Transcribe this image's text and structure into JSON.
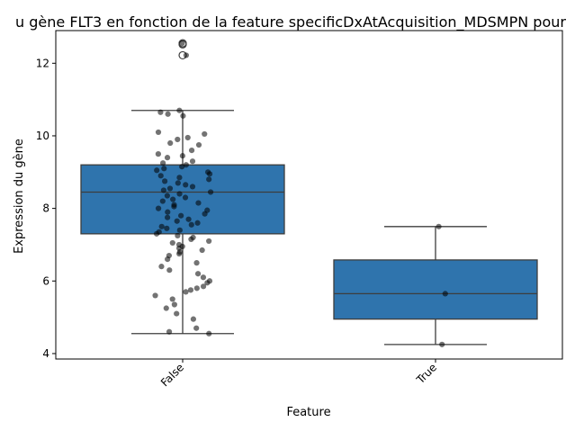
{
  "chart_data": {
    "type": "box",
    "title": "u gène FLT3 en fonction de la feature specificDxAtAcquisition_MDSMPN pour",
    "xlabel": "Feature",
    "ylabel": "Expression du gène",
    "categories": [
      "False",
      "True"
    ],
    "ylim": [
      3.85,
      12.9
    ],
    "yticks": [
      4,
      6,
      8,
      10,
      12
    ],
    "box_color": "#2f74ad",
    "point_color": "#000000",
    "grid": false,
    "boxes": [
      {
        "category": "False",
        "whisker_low": 4.55,
        "q1": 7.3,
        "median": 8.45,
        "q3": 9.2,
        "whisker_high": 10.7,
        "outliers": [
          12.55,
          12.52,
          12.22
        ]
      },
      {
        "category": "True",
        "whisker_low": 4.25,
        "q1": 4.95,
        "median": 5.65,
        "q3": 6.58,
        "whisker_high": 7.5,
        "outliers": []
      }
    ],
    "points": [
      {
        "category": "True",
        "values": [
          7.5,
          5.65,
          4.25
        ],
        "offsets": [
          0.02,
          0.06,
          0.04
        ]
      },
      {
        "category": "False",
        "values": [
          12.55,
          12.22,
          10.65,
          10.6,
          10.7,
          10.55,
          10.1,
          10.05,
          9.95,
          9.9,
          9.8,
          9.75,
          9.6,
          9.5,
          9.45,
          9.4,
          9.3,
          9.25,
          9.2,
          9.15,
          9.1,
          9.05,
          9.0,
          8.95,
          8.9,
          8.85,
          8.8,
          8.75,
          8.7,
          8.65,
          8.6,
          8.55,
          8.5,
          8.45,
          8.4,
          8.35,
          8.3,
          8.25,
          8.2,
          8.15,
          8.1,
          8.05,
          8.0,
          7.95,
          7.9,
          7.85,
          7.8,
          7.75,
          7.7,
          7.65,
          7.6,
          7.55,
          7.5,
          7.45,
          7.4,
          7.35,
          7.3,
          7.25,
          7.2,
          7.15,
          7.1,
          7.05,
          7.0,
          6.95,
          6.9,
          6.85,
          6.8,
          6.75,
          6.7,
          6.6,
          6.5,
          6.4,
          6.3,
          6.2,
          6.1,
          6.0,
          5.95,
          5.85,
          5.8,
          5.75,
          5.7,
          5.6,
          5.5,
          5.35,
          5.25,
          5.1,
          4.95,
          4.7,
          4.6,
          4.55
        ]
      }
    ]
  }
}
